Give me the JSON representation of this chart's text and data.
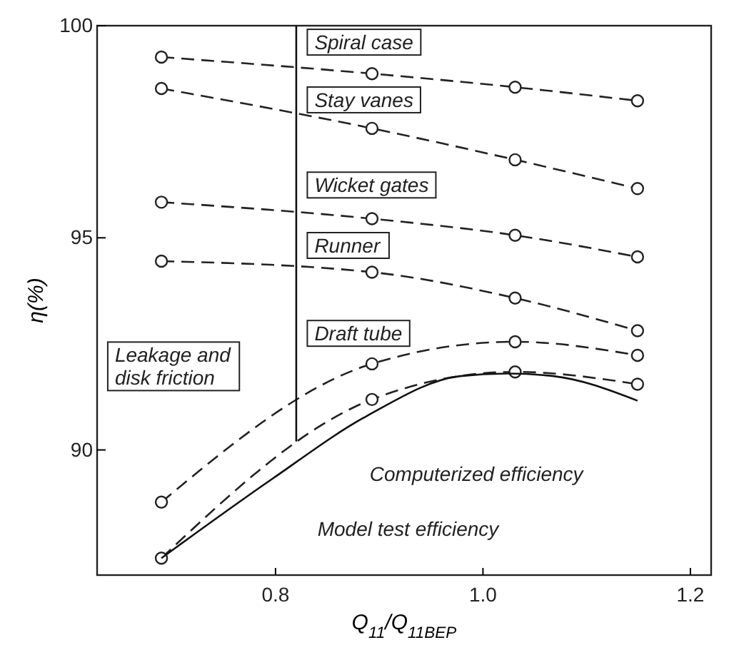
{
  "chart_data": {
    "type": "line",
    "xlabel": "Q$_{11}$/Q$_{11BEP}$",
    "ylabel": "η(%)",
    "xlim": [
      0.628,
      1.22
    ],
    "xticks": [
      {
        "value": 0.8,
        "label": "0.8"
      },
      {
        "value": 1,
        "label": "1.0"
      },
      {
        "value": 1.2,
        "label": "1.2"
      }
    ],
    "ylim": [
      87.05,
      100
    ],
    "yticks": [
      90,
      95,
      100
    ],
    "grid": false,
    "series": [
      {
        "color": "#222222",
        "x": [
          0.69,
          0.893,
          1.031,
          1.149
        ],
        "values": [
          99.26,
          98.87,
          98.55,
          98.23
        ],
        "line_style": "dashed",
        "marker": "circle"
      },
      {
        "color": "#222222",
        "x": [
          0.69,
          0.893,
          1.031,
          1.149
        ],
        "values": [
          98.52,
          97.58,
          96.84,
          96.16
        ],
        "line_style": "dashed",
        "marker": "circle"
      },
      {
        "color": "#222222",
        "x": [
          0.69,
          0.893,
          1.031,
          1.149
        ],
        "values": [
          95.84,
          95.45,
          95.06,
          94.55
        ],
        "line_style": "dashed",
        "marker": "circle"
      },
      {
        "color": "#222222",
        "x": [
          0.69,
          0.893,
          1.031,
          1.149
        ],
        "values": [
          94.45,
          94.19,
          93.58,
          92.81
        ],
        "line_style": "dashed",
        "marker": "circle"
      },
      {
        "color": "#222222",
        "x": [
          0.69,
          0.893,
          1.031,
          1.149
        ],
        "values": [
          88.77,
          92.03,
          92.55,
          92.23
        ],
        "line_style": "dashed",
        "marker": "circle"
      },
      {
        "color": "#222222",
        "x": [
          0.69,
          0.893,
          1.031,
          1.149
        ],
        "values": [
          87.45,
          91.19,
          91.84,
          91.55
        ],
        "line_style": "dashed",
        "marker": "circle"
      },
      {
        "color": "#111111",
        "x": [
          0.69,
          0.797,
          0.888,
          0.978,
          1.023,
          1.068,
          1.149
        ],
        "values": [
          87.45,
          89.32,
          90.8,
          91.74,
          91.8,
          91.74,
          91.16
        ],
        "line_style": "solid",
        "marker": "none"
      },
      {
        "color": "#111111",
        "x": [
          0.82,
          0.82
        ],
        "values": [
          100,
          90.2
        ],
        "line_style": "solid",
        "marker": "none"
      }
    ],
    "annotations": [
      "Spiral case",
      "Stay vanes",
      "Wicket gates",
      "Runner",
      "Draft tube",
      "Leakage and\ndisk friction",
      "Computerized efficiency",
      "Model test efficiency"
    ]
  }
}
